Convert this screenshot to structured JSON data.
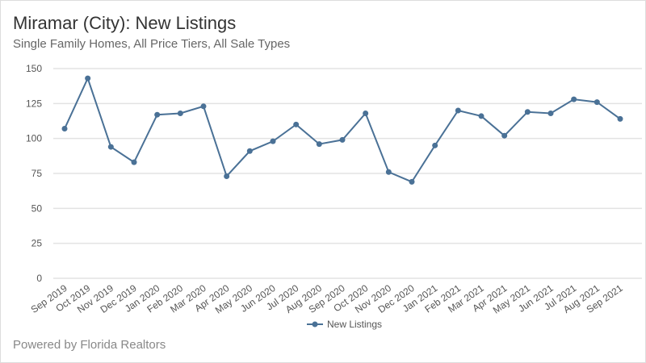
{
  "chart_data": {
    "type": "line",
    "title": "Miramar (City): New Listings",
    "subtitle": "Single Family Homes, All Price Tiers, All Sale Types",
    "footer": "Powered by Florida Realtors",
    "categories": [
      "Sep 2019",
      "Oct 2019",
      "Nov 2019",
      "Dec 2019",
      "Jan 2020",
      "Feb 2020",
      "Mar 2020",
      "Apr 2020",
      "May 2020",
      "Jun 2020",
      "Jul 2020",
      "Aug 2020",
      "Sep 2020",
      "Oct 2020",
      "Nov 2020",
      "Dec 2020",
      "Jan 2021",
      "Feb 2021",
      "Mar 2021",
      "Apr 2021",
      "May 2021",
      "Jun 2021",
      "Jul 2021",
      "Aug 2021",
      "Sep 2021"
    ],
    "series": [
      {
        "name": "New Listings",
        "color": "#4a7196",
        "values": [
          107,
          143,
          94,
          83,
          117,
          118,
          123,
          73,
          91,
          98,
          110,
          96,
          99,
          118,
          76,
          69,
          95,
          120,
          116,
          102,
          119,
          118,
          128,
          126,
          114
        ]
      }
    ],
    "ylim": [
      0,
      150
    ],
    "yticks": [
      0,
      25,
      50,
      75,
      100,
      125,
      150
    ],
    "grid": true,
    "legend": "bottom"
  }
}
